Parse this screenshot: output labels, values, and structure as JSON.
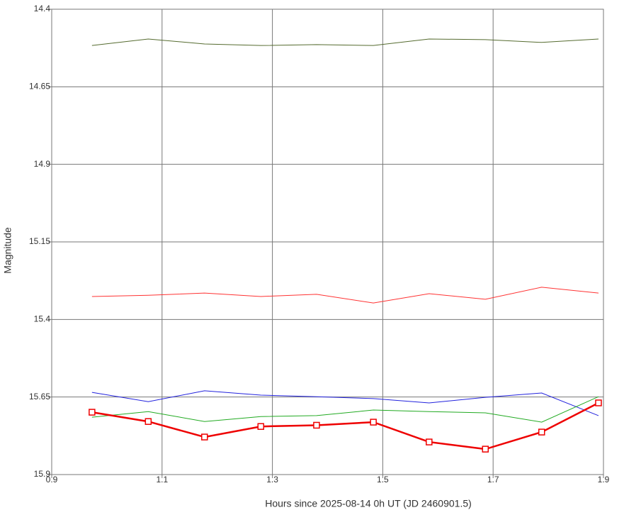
{
  "chart_data": {
    "type": "line",
    "x_label": "Hours since 2025-08-14 0h UT (JD 2460901.5)",
    "y_label": "Magnitude",
    "y_inverted": true,
    "grid": true,
    "xlim": [
      0.9,
      1.9
    ],
    "xticks": [
      0.9,
      1.1,
      1.3,
      1.5,
      1.7,
      1.9
    ],
    "ylim": [
      14.4,
      15.9
    ],
    "yticks": [
      14.4,
      14.65,
      14.9,
      15.15,
      15.4,
      15.65,
      15.9
    ],
    "x": [
      0.973,
      1.075,
      1.177,
      1.279,
      1.38,
      1.483,
      1.584,
      1.686,
      1.788,
      1.891
    ],
    "series": [
      {
        "color": "#556b2f",
        "width": 1,
        "values": [
          14.517,
          14.496,
          14.512,
          14.517,
          14.514,
          14.517,
          14.496,
          14.498,
          14.507,
          14.496
        ]
      },
      {
        "color": "#ff3333",
        "width": 1,
        "values": [
          15.326,
          15.322,
          15.315,
          15.326,
          15.319,
          15.347,
          15.317,
          15.335,
          15.296,
          15.315
        ]
      },
      {
        "color": "#2222dd",
        "width": 1,
        "values": [
          15.635,
          15.665,
          15.63,
          15.644,
          15.649,
          15.655,
          15.669,
          15.651,
          15.637,
          15.71
        ]
      },
      {
        "color": "#22aa22",
        "width": 1,
        "values": [
          15.715,
          15.697,
          15.729,
          15.713,
          15.71,
          15.692,
          15.697,
          15.701,
          15.731,
          15.649
        ]
      },
      {
        "color": "#ee0000",
        "width": 2.5,
        "marker": "square",
        "values": [
          15.699,
          15.729,
          15.779,
          15.745,
          15.741,
          15.731,
          15.795,
          15.818,
          15.763,
          15.669
        ]
      }
    ]
  }
}
